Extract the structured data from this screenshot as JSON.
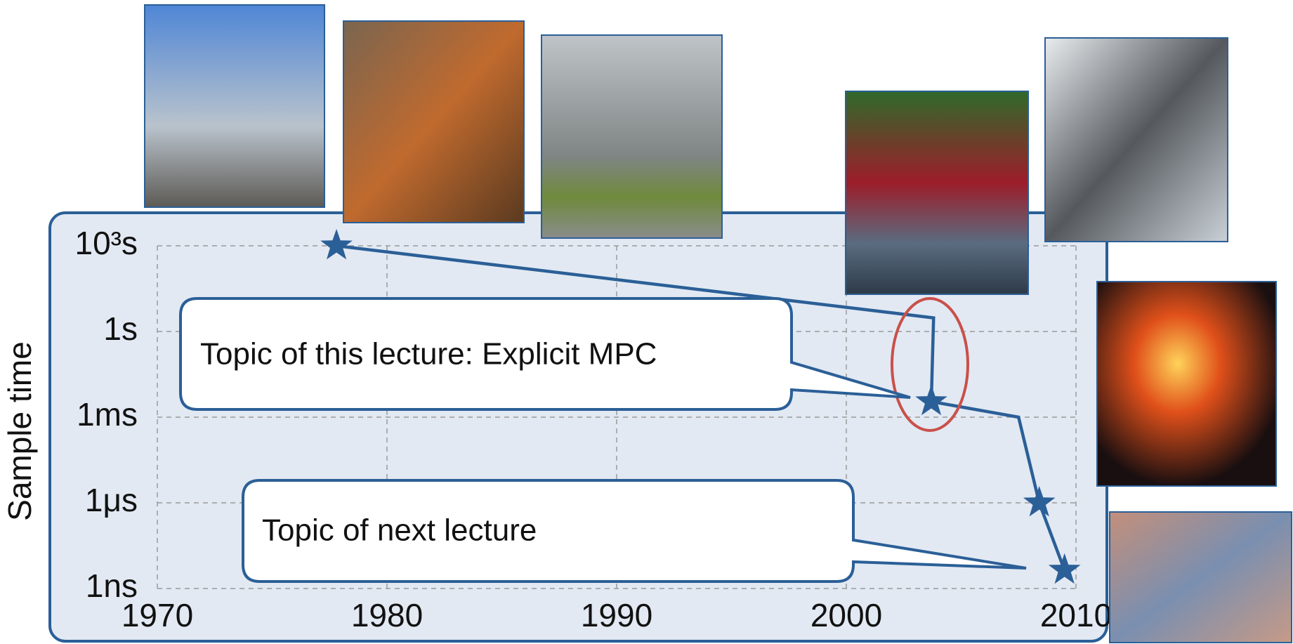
{
  "chart_data": {
    "type": "line",
    "y_label": "Sample time",
    "xlim": [
      1970,
      2010
    ],
    "xticks": [
      1970,
      1980,
      1990,
      2000,
      2010
    ],
    "ylim": [
      1e-09,
      1000
    ],
    "yscale": "log",
    "yticks": [
      {
        "value": 1000,
        "label": "10³s"
      },
      {
        "value": 1,
        "label": "1s"
      },
      {
        "value": 0.001,
        "label": "1ms"
      },
      {
        "value": 1e-06,
        "label": "1μs"
      },
      {
        "value": 1e-09,
        "label": "1ns"
      }
    ],
    "grid": true,
    "series": [
      {
        "color": "#2b5f97",
        "x": [
          1977.8,
          2003.8,
          2003.7,
          2007.5,
          2008.4,
          2009.5
        ],
        "values": [
          1000,
          3,
          0.0035,
          0.001,
          1e-06,
          4.4e-09
        ]
      }
    ],
    "markers": {
      "color": "#2b5f97",
      "x": [
        1977.8,
        2003.7,
        2008.4,
        2009.5
      ],
      "values": [
        1000,
        0.0035,
        1e-06,
        4.4e-09
      ]
    },
    "annotations": [
      "Topic of this lecture: Explicit MPC",
      "Topic of next lecture"
    ]
  }
}
